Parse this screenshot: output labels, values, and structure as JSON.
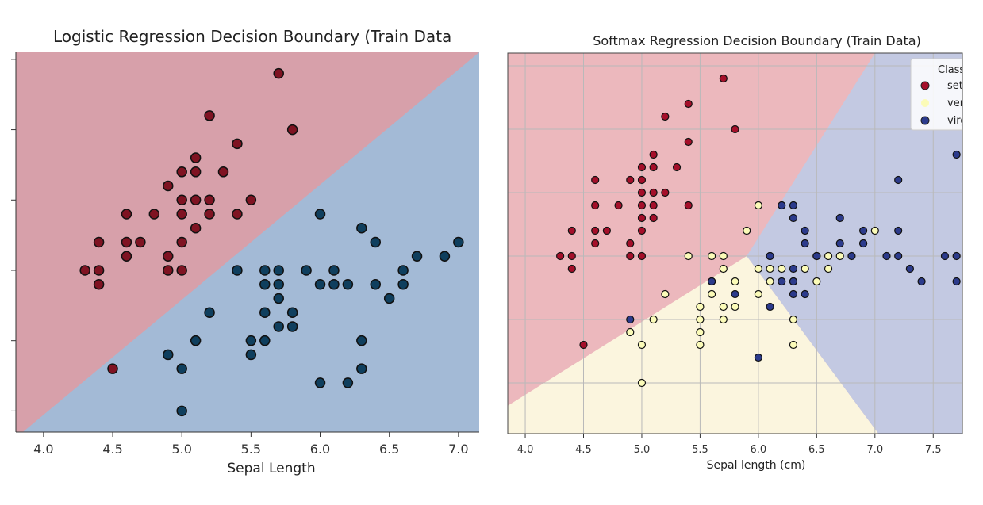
{
  "chart_data": [
    {
      "type": "scatter",
      "title": "Logistic Regression Decision Boundary (Train Data",
      "xlabel": "Sepal Length",
      "ylabel": "",
      "xlim": [
        3.8,
        7.15
      ],
      "ylim": [
        1.85,
        4.55
      ],
      "xticks": [
        "4.0",
        "4.5",
        "5.0",
        "5.5",
        "6.0",
        "6.5",
        "7.0"
      ],
      "regions": [
        {
          "class": 0,
          "color": "#d7a0aa"
        },
        {
          "class": 1,
          "color": "#a3bad6"
        }
      ],
      "boundary": [
        [
          3.85,
          1.85
        ],
        [
          7.15,
          4.55
        ]
      ],
      "series": [
        {
          "color": "#7f1322",
          "points": [
            [
              5.7,
              4.4
            ],
            [
              5.2,
              4.1
            ],
            [
              5.8,
              4.0
            ],
            [
              5.4,
              3.9
            ],
            [
              5.1,
              3.8
            ],
            [
              5.0,
              3.7
            ],
            [
              5.1,
              3.7
            ],
            [
              5.3,
              3.7
            ],
            [
              4.9,
              3.6
            ],
            [
              4.6,
              3.4
            ],
            [
              4.8,
              3.4
            ],
            [
              5.0,
              3.4
            ],
            [
              5.0,
              3.5
            ],
            [
              5.1,
              3.5
            ],
            [
              5.2,
              3.5
            ],
            [
              5.2,
              3.4
            ],
            [
              5.4,
              3.4
            ],
            [
              5.5,
              3.5
            ],
            [
              4.4,
              3.2
            ],
            [
              4.6,
              3.2
            ],
            [
              4.7,
              3.2
            ],
            [
              5.0,
              3.2
            ],
            [
              5.1,
              3.3
            ],
            [
              4.6,
              3.1
            ],
            [
              4.9,
              3.1
            ],
            [
              4.3,
              3.0
            ],
            [
              4.4,
              3.0
            ],
            [
              4.9,
              3.0
            ],
            [
              5.0,
              3.0
            ],
            [
              4.4,
              2.9
            ],
            [
              4.5,
              2.3
            ]
          ]
        },
        {
          "color": "#0f3f5e",
          "points": [
            [
              6.0,
              3.4
            ],
            [
              6.3,
              3.3
            ],
            [
              6.4,
              3.2
            ],
            [
              7.0,
              3.2
            ],
            [
              6.7,
              3.1
            ],
            [
              6.9,
              3.1
            ],
            [
              5.4,
              3.0
            ],
            [
              5.6,
              3.0
            ],
            [
              5.7,
              3.0
            ],
            [
              5.9,
              3.0
            ],
            [
              6.1,
              3.0
            ],
            [
              6.6,
              3.0
            ],
            [
              5.6,
              2.9
            ],
            [
              5.7,
              2.9
            ],
            [
              6.0,
              2.9
            ],
            [
              6.1,
              2.9
            ],
            [
              6.2,
              2.9
            ],
            [
              6.4,
              2.9
            ],
            [
              6.6,
              2.9
            ],
            [
              5.7,
              2.8
            ],
            [
              6.5,
              2.8
            ],
            [
              5.2,
              2.7
            ],
            [
              5.6,
              2.7
            ],
            [
              5.8,
              2.7
            ],
            [
              5.7,
              2.6
            ],
            [
              5.8,
              2.6
            ],
            [
              5.1,
              2.5
            ],
            [
              5.5,
              2.5
            ],
            [
              5.6,
              2.5
            ],
            [
              6.3,
              2.5
            ],
            [
              4.9,
              2.4
            ],
            [
              5.5,
              2.4
            ],
            [
              5.0,
              2.3
            ],
            [
              6.3,
              2.3
            ],
            [
              6.0,
              2.2
            ],
            [
              6.2,
              2.2
            ],
            [
              5.0,
              2.0
            ]
          ]
        }
      ]
    },
    {
      "type": "scatter",
      "title": "Softmax Regression Decision Boundary (Train Data)",
      "xlabel": "Sepal length (cm)",
      "ylabel": "",
      "xlim": [
        3.85,
        7.75
      ],
      "ylim": [
        1.6,
        4.6
      ],
      "xticks": [
        "4.0",
        "4.5",
        "5.0",
        "5.5",
        "6.0",
        "6.5",
        "7.0",
        "7.5"
      ],
      "grid": true,
      "legend": {
        "position": "top-right",
        "title": "Class",
        "entries": [
          {
            "label": "setosa",
            "color": "#a50f2a"
          },
          {
            "label": "versicolor",
            "color": "#fbfbb8"
          },
          {
            "label": "virginica",
            "color": "#2c3b8c"
          }
        ]
      },
      "regions": [
        {
          "class": 0,
          "color": "#ecb8bd"
        },
        {
          "class": 1,
          "color": "#fbf5de"
        },
        {
          "class": 2,
          "color": "#c3c9e2"
        }
      ],
      "boundaries": [
        [
          [
            5.9,
            3.0
          ],
          [
            3.85,
            1.82
          ]
        ],
        [
          [
            5.9,
            3.0
          ],
          [
            7.03,
            1.6
          ]
        ],
        [
          [
            5.9,
            3.0
          ],
          [
            7.0,
            4.6
          ]
        ]
      ],
      "series": [
        {
          "name": "setosa",
          "color": "#a50f2a",
          "points": [
            [
              5.7,
              4.4
            ],
            [
              5.4,
              4.2
            ],
            [
              5.2,
              4.1
            ],
            [
              5.8,
              4.0
            ],
            [
              5.4,
              3.9
            ],
            [
              5.1,
              3.8
            ],
            [
              5.0,
              3.7
            ],
            [
              5.1,
              3.7
            ],
            [
              5.3,
              3.7
            ],
            [
              4.6,
              3.6
            ],
            [
              4.9,
              3.6
            ],
            [
              5.0,
              3.6
            ],
            [
              4.6,
              3.4
            ],
            [
              4.8,
              3.4
            ],
            [
              5.0,
              3.4
            ],
            [
              5.0,
              3.5
            ],
            [
              5.1,
              3.5
            ],
            [
              5.2,
              3.5
            ],
            [
              5.1,
              3.4
            ],
            [
              5.4,
              3.4
            ],
            [
              4.4,
              3.2
            ],
            [
              4.6,
              3.2
            ],
            [
              4.7,
              3.2
            ],
            [
              5.0,
              3.2
            ],
            [
              5.0,
              3.3
            ],
            [
              5.1,
              3.3
            ],
            [
              4.6,
              3.1
            ],
            [
              4.9,
              3.1
            ],
            [
              4.3,
              3.0
            ],
            [
              4.4,
              3.0
            ],
            [
              4.9,
              3.0
            ],
            [
              5.0,
              3.0
            ],
            [
              4.4,
              2.9
            ],
            [
              4.5,
              2.3
            ]
          ]
        },
        {
          "name": "versicolor",
          "color": "#fbfbb8",
          "points": [
            [
              6.0,
              3.4
            ],
            [
              5.9,
              3.2
            ],
            [
              7.0,
              3.2
            ],
            [
              6.9,
              3.1
            ],
            [
              5.4,
              3.0
            ],
            [
              5.6,
              3.0
            ],
            [
              5.7,
              3.0
            ],
            [
              6.6,
              3.0
            ],
            [
              6.7,
              3.0
            ],
            [
              6.1,
              3.0
            ],
            [
              6.5,
              3.0
            ],
            [
              5.7,
              2.9
            ],
            [
              6.0,
              2.9
            ],
            [
              6.1,
              2.9
            ],
            [
              6.2,
              2.9
            ],
            [
              6.4,
              2.9
            ],
            [
              6.6,
              2.9
            ],
            [
              5.6,
              2.8
            ],
            [
              5.8,
              2.8
            ],
            [
              6.1,
              2.8
            ],
            [
              6.5,
              2.8
            ],
            [
              6.3,
              2.8
            ],
            [
              5.2,
              2.7
            ],
            [
              5.6,
              2.7
            ],
            [
              6.0,
              2.7
            ],
            [
              5.7,
              2.6
            ],
            [
              5.8,
              2.6
            ],
            [
              5.5,
              2.6
            ],
            [
              5.1,
              2.5
            ],
            [
              5.5,
              2.5
            ],
            [
              5.7,
              2.5
            ],
            [
              6.3,
              2.5
            ],
            [
              4.9,
              2.4
            ],
            [
              5.5,
              2.4
            ],
            [
              5.0,
              2.3
            ],
            [
              5.5,
              2.3
            ],
            [
              6.3,
              2.3
            ],
            [
              5.0,
              2.0
            ]
          ]
        },
        {
          "name": "virginica",
          "color": "#2c3b8c",
          "points": [
            [
              7.7,
              3.8
            ],
            [
              7.2,
              3.6
            ],
            [
              6.2,
              3.4
            ],
            [
              6.3,
              3.4
            ],
            [
              6.3,
              3.3
            ],
            [
              6.7,
              3.3
            ],
            [
              6.4,
              3.2
            ],
            [
              6.9,
              3.2
            ],
            [
              7.2,
              3.2
            ],
            [
              6.4,
              3.1
            ],
            [
              6.7,
              3.1
            ],
            [
              6.9,
              3.1
            ],
            [
              6.1,
              3.0
            ],
            [
              6.5,
              3.0
            ],
            [
              6.8,
              3.0
            ],
            [
              7.1,
              3.0
            ],
            [
              7.2,
              3.0
            ],
            [
              7.6,
              3.0
            ],
            [
              7.7,
              3.0
            ],
            [
              6.3,
              2.9
            ],
            [
              7.3,
              2.9
            ],
            [
              5.6,
              2.8
            ],
            [
              6.2,
              2.8
            ],
            [
              6.3,
              2.8
            ],
            [
              7.4,
              2.8
            ],
            [
              7.7,
              2.8
            ],
            [
              5.8,
              2.7
            ],
            [
              6.3,
              2.7
            ],
            [
              6.4,
              2.7
            ],
            [
              6.1,
              2.6
            ],
            [
              4.9,
              2.5
            ],
            [
              6.0,
              2.2
            ]
          ]
        }
      ]
    }
  ]
}
